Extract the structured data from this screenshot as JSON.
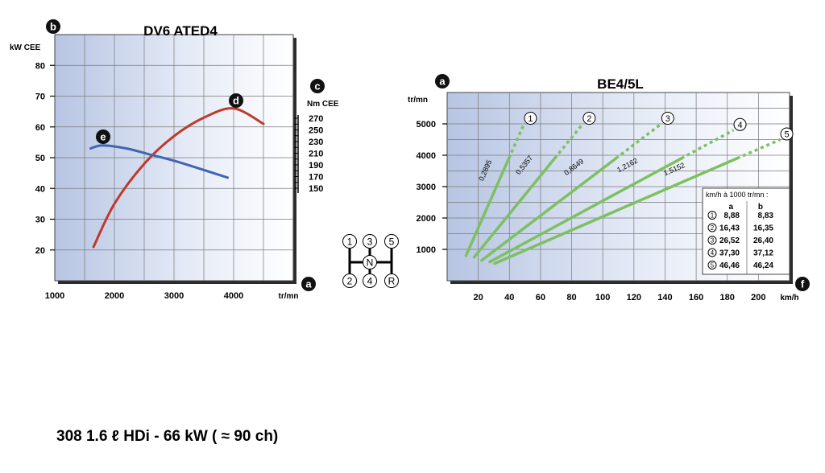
{
  "caption": "308 1.6 ℓ HDi - 66 kW ( ≈ 90 ch)",
  "chart_data": [
    {
      "type": "line",
      "title": "DV6 ATED4",
      "markers": {
        "y_axis": "b",
        "y2_axis": "c",
        "x_axis": "a",
        "power_curve": "d",
        "torque_curve": "e"
      },
      "ylabel": "kW CEE",
      "y2label": "Nm CEE",
      "xlabel": "tr/mn",
      "xlim": [
        1000,
        5000
      ],
      "ylim": [
        10,
        90
      ],
      "y2lim": [
        150,
        270
      ],
      "x_ticks": [
        "1000",
        "2000",
        "3000",
        "4000"
      ],
      "y_ticks": [
        "20",
        "30",
        "40",
        "50",
        "60",
        "70",
        "80"
      ],
      "y2_ticks": [
        "150",
        "170",
        "190",
        "210",
        "230",
        "250",
        "270"
      ],
      "grid": true,
      "series": [
        {
          "marker": "d",
          "axis": "kW CEE",
          "color": "#c0392b",
          "points": [
            [
              1650,
              21
            ],
            [
              2000,
              35
            ],
            [
              2500,
              48
            ],
            [
              3000,
              57
            ],
            [
              3500,
              63
            ],
            [
              4000,
              66
            ],
            [
              4500,
              61
            ]
          ]
        },
        {
          "marker": "e",
          "axis": "kW CEE",
          "color": "#3f66b0",
          "points": [
            [
              1600,
              53
            ],
            [
              1800,
              54
            ],
            [
              2200,
              53
            ],
            [
              2600,
              51
            ],
            [
              3000,
              49
            ],
            [
              3500,
              46
            ],
            [
              3900,
              43.5
            ]
          ]
        }
      ]
    },
    {
      "type": "line",
      "title": "BE4/5L",
      "markers": {
        "y_axis": "a",
        "x_axis": "f"
      },
      "ylabel": "tr/mn",
      "xlabel": "km/h",
      "xlim": [
        0,
        220
      ],
      "ylim": [
        0,
        6000
      ],
      "x_ticks": [
        "20",
        "40",
        "60",
        "80",
        "100",
        "120",
        "140",
        "160",
        "180",
        "200"
      ],
      "y_ticks": [
        "1000",
        "2000",
        "3000",
        "4000",
        "5000"
      ],
      "grid": true,
      "color": "#7dc061",
      "gears": [
        {
          "number": "1",
          "ratio": "0,2895",
          "speed_per_1000": 8.88,
          "rpm_range": [
            800,
            5000
          ]
        },
        {
          "number": "2",
          "ratio": "0,5357",
          "speed_per_1000": 16.43,
          "rpm_range": [
            750,
            5000
          ]
        },
        {
          "number": "3",
          "ratio": "0,8649",
          "speed_per_1000": 26.52,
          "rpm_range": [
            650,
            5000
          ]
        },
        {
          "number": "4",
          "ratio": "1,2162",
          "speed_per_1000": 37.3,
          "rpm_range": [
            600,
            4800
          ]
        },
        {
          "number": "5",
          "ratio": "1,5152",
          "speed_per_1000": 46.46,
          "rpm_range": [
            550,
            4500
          ]
        }
      ],
      "table": {
        "title": "km/h à 1000 tr/mn :",
        "columns": [
          "a",
          "b"
        ],
        "rows": [
          {
            "gear": "1",
            "a": "8,88",
            "b": "8,83"
          },
          {
            "gear": "2",
            "a": "16,43",
            "b": "16,35"
          },
          {
            "gear": "3",
            "a": "26,52",
            "b": "26,40"
          },
          {
            "gear": "4",
            "a": "37,30",
            "b": "37,12"
          },
          {
            "gear": "5",
            "a": "46,46",
            "b": "46,24"
          }
        ]
      }
    }
  ],
  "shift_pattern": {
    "top": [
      "1",
      "3",
      "5"
    ],
    "bottom": [
      "2",
      "4",
      "R"
    ],
    "center": "N"
  }
}
